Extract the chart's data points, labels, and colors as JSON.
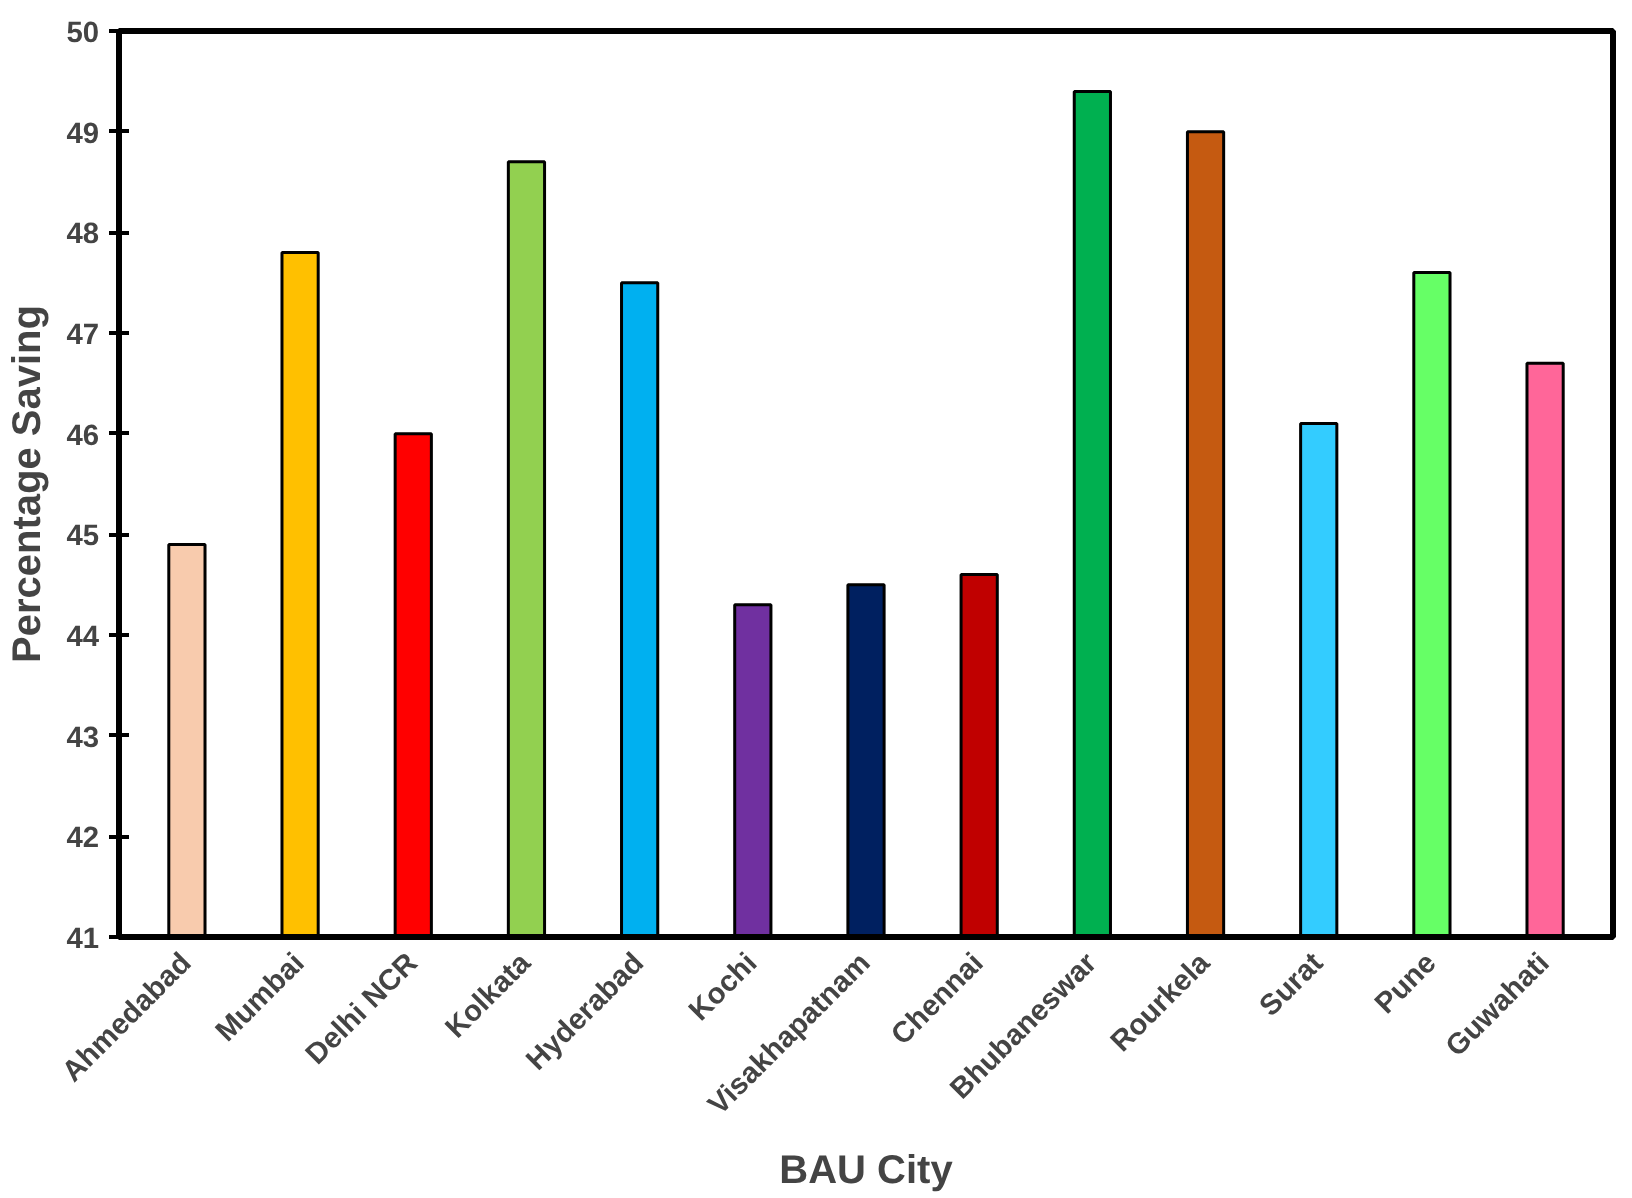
{
  "chart_data": {
    "type": "bar",
    "xlabel": "BAU City",
    "ylabel": "Percentage Saving",
    "categories": [
      "Ahmedabad",
      "Mumbai",
      "Delhi NCR",
      "Kolkata",
      "Hyderabad",
      "Kochi",
      "Visakhapatnam",
      "Chennai",
      "Bhubaneswar",
      "Rourkela",
      "Surat",
      "Pune",
      "Guwahati"
    ],
    "values": [
      44.9,
      47.8,
      46.0,
      48.7,
      47.5,
      44.3,
      44.5,
      44.6,
      49.4,
      49.0,
      46.1,
      47.6,
      46.7
    ],
    "colors": [
      "#f8cbad",
      "#ffc000",
      "#ff0000",
      "#92d050",
      "#00b0f0",
      "#7030a0",
      "#002060",
      "#c00000",
      "#00b050",
      "#c55a11",
      "#33ccff",
      "#66ff66",
      "#ff6699"
    ],
    "ylim": [
      41,
      50
    ],
    "yticks": [
      41,
      42,
      43,
      44,
      45,
      46,
      47,
      48,
      49,
      50
    ],
    "grid": false
  }
}
